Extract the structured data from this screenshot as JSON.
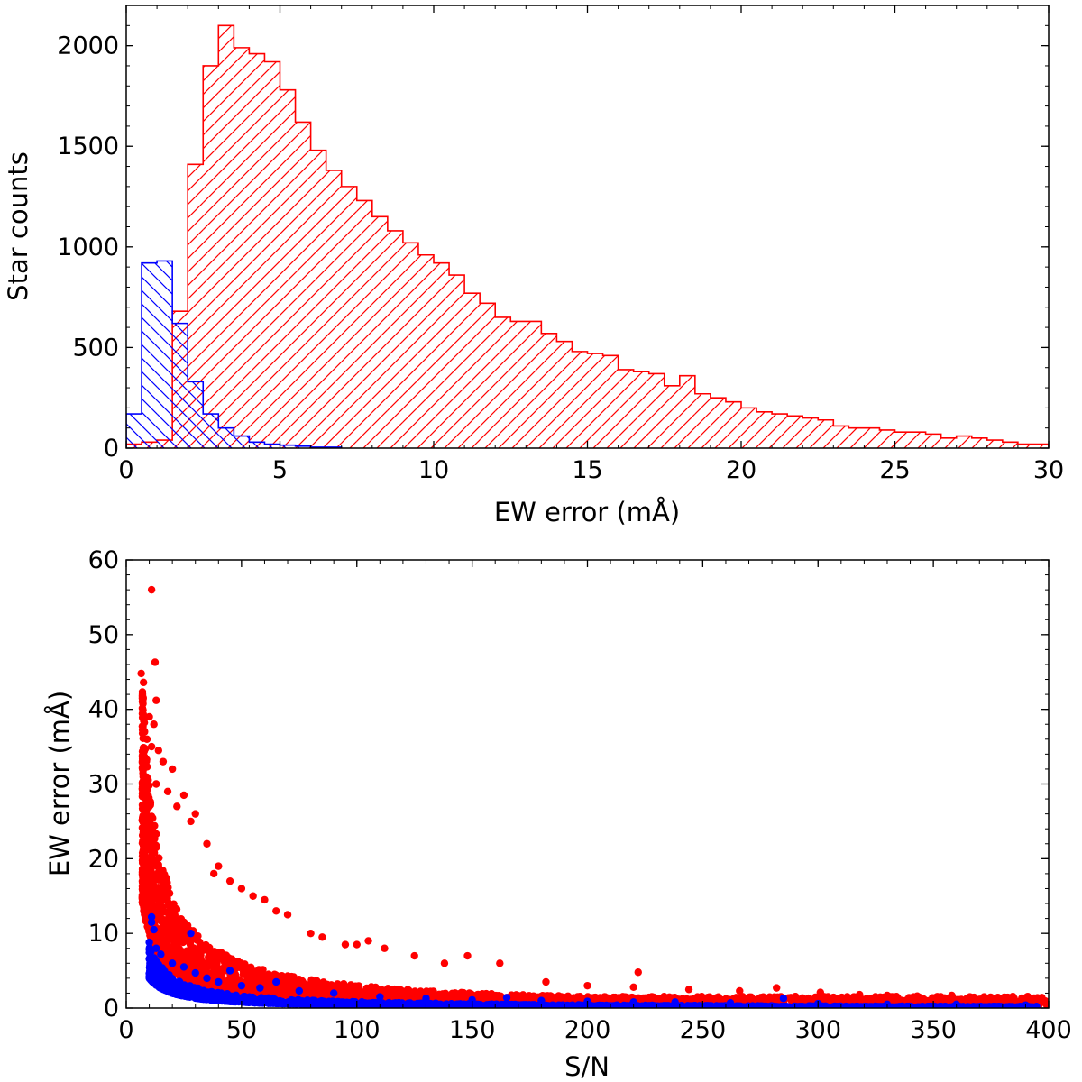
{
  "colors": {
    "red": "#ff0000",
    "blue": "#0000ff",
    "axis": "#000000"
  },
  "chart_data": [
    {
      "type": "bar",
      "subtype": "histogram",
      "hatched": true,
      "xlabel": "EW error (mÅ)",
      "ylabel": "Star counts",
      "xlim": [
        0,
        30
      ],
      "ylim": [
        0,
        2200
      ],
      "xticks": [
        0,
        5,
        10,
        15,
        20,
        25,
        30
      ],
      "yticks": [
        0,
        500,
        1000,
        1500,
        2000
      ],
      "bin_width": 0.5,
      "series": [
        {
          "color": "#ff0000",
          "hatch": "diagonal",
          "bin_start": 0,
          "values": [
            20,
            30,
            40,
            680,
            1410,
            1900,
            2100,
            1990,
            1960,
            1920,
            1780,
            1620,
            1480,
            1380,
            1300,
            1230,
            1150,
            1080,
            1020,
            960,
            920,
            860,
            770,
            720,
            650,
            630,
            630,
            570,
            530,
            480,
            470,
            460,
            390,
            380,
            370,
            310,
            360,
            270,
            250,
            230,
            200,
            180,
            170,
            160,
            150,
            140,
            110,
            100,
            100,
            90,
            80,
            80,
            70,
            50,
            60,
            50,
            40,
            30,
            20,
            20
          ]
        },
        {
          "color": "#0000ff",
          "hatch": "diagonal",
          "bin_start": 0,
          "values": [
            170,
            920,
            930,
            620,
            330,
            170,
            100,
            60,
            30,
            20,
            15,
            10,
            5,
            5
          ]
        }
      ]
    },
    {
      "type": "scatter",
      "xlabel": "S/N",
      "ylabel": "EW error (mÅ)",
      "xlim": [
        0,
        400
      ],
      "ylim": [
        0,
        60
      ],
      "xticks": [
        0,
        50,
        100,
        150,
        200,
        250,
        300,
        350,
        400
      ],
      "yticks": [
        0,
        10,
        20,
        30,
        40,
        50,
        60
      ],
      "series": [
        {
          "color": "#ff0000",
          "trend": "EW error ≈ 180/(S/N), scatter 0.55–2.4×",
          "points": [
            [
              11,
              56
            ],
            [
              12.5,
              46.3
            ],
            [
              6.5,
              44.8
            ],
            [
              7.5,
              43.6
            ],
            [
              13,
              41.2
            ],
            [
              10,
              39
            ],
            [
              12,
              38
            ],
            [
              9,
              36
            ],
            [
              11,
              35
            ],
            [
              16,
              33
            ],
            [
              14,
              34.5
            ],
            [
              20,
              32
            ],
            [
              8,
              33
            ],
            [
              13,
              30
            ],
            [
              18,
              29
            ],
            [
              22,
              27
            ],
            [
              25,
              28.5
            ],
            [
              30,
              26
            ],
            [
              28,
              25
            ],
            [
              35,
              22
            ],
            [
              38,
              18
            ],
            [
              40,
              19
            ],
            [
              45,
              17
            ],
            [
              50,
              16
            ],
            [
              55,
              15
            ],
            [
              60,
              14.5
            ],
            [
              65,
              13
            ],
            [
              70,
              12.5
            ],
            [
              80,
              10
            ],
            [
              85,
              9.5
            ],
            [
              95,
              8.5
            ],
            [
              100,
              8.5
            ],
            [
              105,
              9
            ],
            [
              112,
              8
            ],
            [
              125,
              7
            ],
            [
              138,
              6
            ],
            [
              148,
              7
            ],
            [
              162,
              6
            ],
            [
              182,
              3.5
            ],
            [
              200,
              3
            ],
            [
              220,
              2.8
            ],
            [
              222,
              4.8
            ],
            [
              244,
              2.5
            ],
            [
              266,
              2.3
            ],
            [
              282,
              2.7
            ],
            [
              301,
              2.1
            ],
            [
              318,
              1.8
            ],
            [
              330,
              1.7
            ],
            [
              343,
              1.6
            ],
            [
              358,
              1.7
            ],
            [
              372,
              1.5
            ],
            [
              385,
              1.3
            ],
            [
              392,
              1
            ]
          ]
        },
        {
          "color": "#0000ff",
          "trend": "EW error ≈ 90/(S/N), lower envelope ≈ 40/(S/N)",
          "points": [
            [
              11,
              12.2
            ],
            [
              11,
              11.5
            ],
            [
              12,
              10.5
            ],
            [
              10,
              8.8
            ],
            [
              13,
              8
            ],
            [
              15,
              7.2
            ],
            [
              20,
              6
            ],
            [
              25,
              5.5
            ],
            [
              28,
              10
            ],
            [
              30,
              4.7
            ],
            [
              35,
              4
            ],
            [
              40,
              3.5
            ],
            [
              45,
              5
            ],
            [
              50,
              3
            ],
            [
              58,
              2.7
            ],
            [
              65,
              3.5
            ],
            [
              75,
              2.3
            ],
            [
              90,
              2
            ],
            [
              110,
              1.5
            ],
            [
              130,
              1.3
            ],
            [
              150,
              1.1
            ],
            [
              165,
              1.4
            ],
            [
              180,
              1
            ],
            [
              200,
              0.9
            ],
            [
              220,
              0.8
            ],
            [
              238,
              0.8
            ],
            [
              262,
              0.7
            ],
            [
              285,
              1.3
            ],
            [
              300,
              0.6
            ],
            [
              330,
              0.5
            ],
            [
              360,
              0.5
            ],
            [
              390,
              0.4
            ]
          ]
        }
      ]
    }
  ]
}
